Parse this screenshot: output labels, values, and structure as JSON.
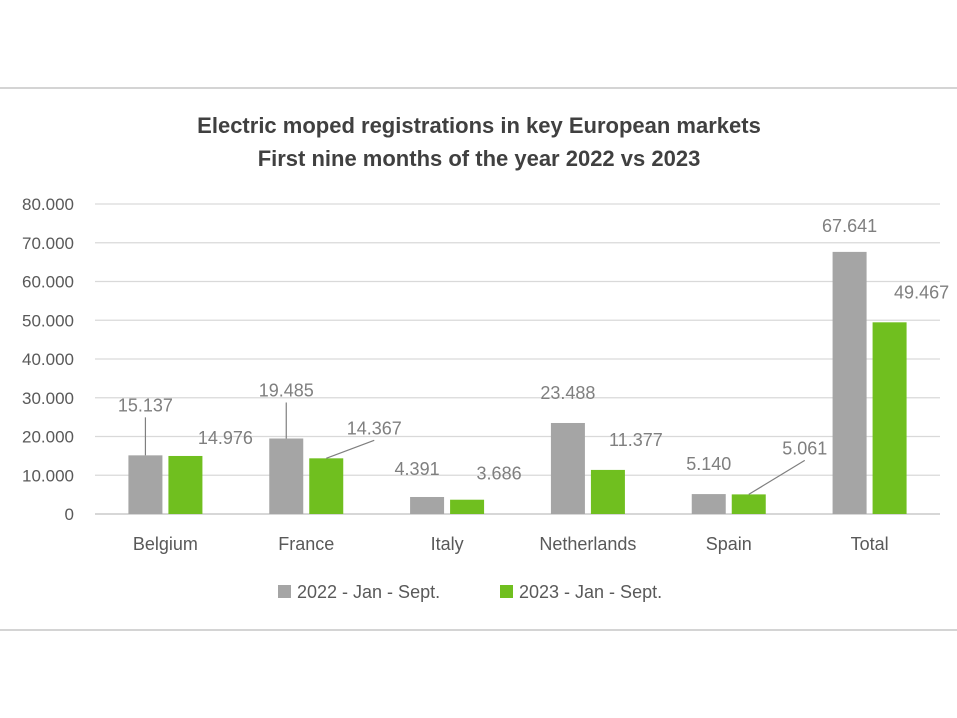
{
  "chart_data": {
    "type": "bar",
    "title": "Electric moped registrations in key European markets",
    "subtitle": "First nine months of the year 2022 vs 2023",
    "categories": [
      "Belgium",
      "France",
      "Italy",
      "Netherlands",
      "Spain",
      "Total"
    ],
    "series": [
      {
        "name": "2022 - Jan - Sept.",
        "color": "#a5a5a5",
        "values": [
          15137,
          19485,
          4391,
          23488,
          5140,
          67641
        ],
        "labels": [
          "15.137",
          "19.485",
          "4.391",
          "23.488",
          "5.140",
          "67.641"
        ]
      },
      {
        "name": "2023 - Jan - Sept.",
        "color": "#70bf1f",
        "values": [
          14976,
          14367,
          3686,
          11377,
          5061,
          49467
        ],
        "labels": [
          "14.976",
          "14.367",
          "3.686",
          "11.377",
          "5.061",
          "49.467"
        ]
      }
    ],
    "ylim": [
      0,
      80000
    ],
    "yticks": [
      0,
      10000,
      20000,
      30000,
      40000,
      50000,
      60000,
      70000,
      80000
    ],
    "ytick_labels": [
      "0",
      "10.000",
      "20.000",
      "30.000",
      "40.000",
      "50.000",
      "60.000",
      "70.000",
      "80.000"
    ],
    "grid": true,
    "legend": "bottom"
  }
}
